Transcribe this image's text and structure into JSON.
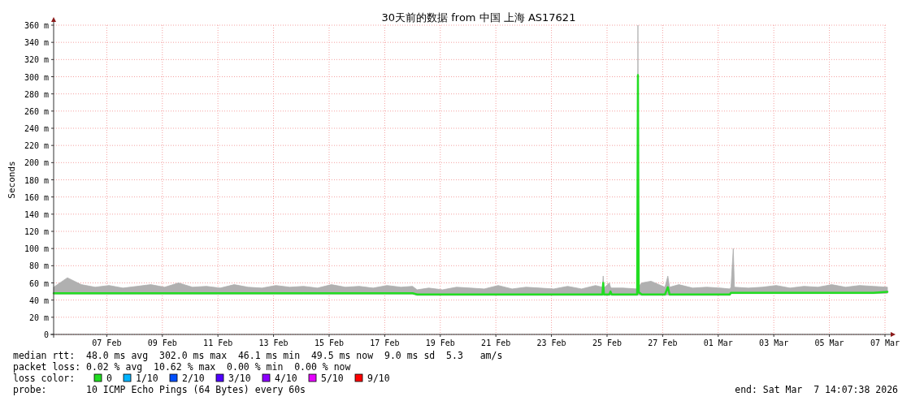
{
  "chart_data": {
    "type": "line",
    "title": "30天前的数据 from 中国 上海 AS17621",
    "ylabel": "Seconds",
    "legend_title": "loss color:",
    "legend": "bottom",
    "grid": true,
    "marker": "none",
    "line_style": "solid",
    "xlim": [
      "2026-02-05T14:07",
      "2026-03-07T14:07"
    ],
    "xticks": [
      {
        "value": "2026-02-07T12:00",
        "label": "07 Feb"
      },
      {
        "value": "2026-02-09T12:00",
        "label": "09 Feb"
      },
      {
        "value": "2026-02-11T12:00",
        "label": "11 Feb"
      },
      {
        "value": "2026-02-13T12:00",
        "label": "13 Feb"
      },
      {
        "value": "2026-02-15T12:00",
        "label": "15 Feb"
      },
      {
        "value": "2026-02-17T12:00",
        "label": "17 Feb"
      },
      {
        "value": "2026-02-19T12:00",
        "label": "19 Feb"
      },
      {
        "value": "2026-02-21T12:00",
        "label": "21 Feb"
      },
      {
        "value": "2026-02-23T12:00",
        "label": "23 Feb"
      },
      {
        "value": "2026-02-25T12:00",
        "label": "25 Feb"
      },
      {
        "value": "2026-02-27T12:00",
        "label": "27 Feb"
      },
      {
        "value": "2026-03-01T12:00",
        "label": "01 Mar"
      },
      {
        "value": "2026-03-03T12:00",
        "label": "03 Mar"
      },
      {
        "value": "2026-03-05T12:00",
        "label": "05 Mar"
      },
      {
        "value": "2026-03-07T12:00",
        "label": "07 Mar"
      }
    ],
    "ylim": [
      0,
      360
    ],
    "yticks": [
      0,
      {
        "value": 20,
        "label": "20 m"
      },
      {
        "value": 40,
        "label": "40 m"
      },
      {
        "value": 60,
        "label": "60 m"
      },
      {
        "value": 80,
        "label": "80 m"
      },
      {
        "value": 100,
        "label": "100 m"
      },
      {
        "value": 120,
        "label": "120 m"
      },
      {
        "value": 140,
        "label": "140 m"
      },
      {
        "value": 160,
        "label": "160 m"
      },
      {
        "value": 180,
        "label": "180 m"
      },
      {
        "value": 200,
        "label": "200 m"
      },
      {
        "value": 220,
        "label": "220 m"
      },
      {
        "value": 240,
        "label": "240 m"
      },
      {
        "value": 260,
        "label": "260 m"
      },
      {
        "value": 280,
        "label": "280 m"
      },
      {
        "value": 300,
        "label": "300 m"
      },
      {
        "value": 320,
        "label": "320 m"
      },
      {
        "value": 340,
        "label": "340 m"
      },
      {
        "value": 360,
        "label": "360 m"
      }
    ],
    "series": [
      {
        "name": "0",
        "color": "#22dd22",
        "x": [
          "2026-02-05T14:07",
          "2026-02-06T02:00",
          "2026-02-06T14:00",
          "2026-02-07T02:00",
          "2026-02-07T14:00",
          "2026-02-08T02:00",
          "2026-02-08T14:00",
          "2026-02-09T02:00",
          "2026-02-09T14:00",
          "2026-02-10T02:00",
          "2026-02-10T14:00",
          "2026-02-11T02:00",
          "2026-02-11T14:00",
          "2026-02-12T02:00",
          "2026-02-12T14:00",
          "2026-02-13T02:00",
          "2026-02-13T14:00",
          "2026-02-14T02:00",
          "2026-02-14T14:00",
          "2026-02-15T02:00",
          "2026-02-15T14:00",
          "2026-02-16T02:00",
          "2026-02-16T14:00",
          "2026-02-17T02:00",
          "2026-02-17T14:00",
          "2026-02-18T02:00",
          "2026-02-18T12:00",
          "2026-02-18T16:00",
          "2026-02-19T02:00",
          "2026-02-19T14:00",
          "2026-02-20T02:00",
          "2026-02-20T14:00",
          "2026-02-21T02:00",
          "2026-02-21T14:00",
          "2026-02-22T02:00",
          "2026-02-22T14:00",
          "2026-02-23T02:00",
          "2026-02-23T14:00",
          "2026-02-24T02:00",
          "2026-02-24T14:00",
          "2026-02-25T02:00",
          "2026-02-25T08:00",
          "2026-02-25T08:40",
          "2026-02-25T09:20",
          "2026-02-25T14:00",
          "2026-02-25T15:00",
          "2026-02-25T16:00",
          "2026-02-26T02:00",
          "2026-02-26T14:00",
          "2026-02-26T14:40",
          "2026-02-26T15:20",
          "2026-02-26T18:00",
          "2026-02-27T02:00",
          "2026-02-27T14:00",
          "2026-02-27T16:30",
          "2026-02-27T18:00",
          "2026-02-28T02:00",
          "2026-02-28T14:00",
          "2026-03-01T02:00",
          "2026-03-01T14:00",
          "2026-03-01T22:00",
          "2026-03-01T23:00",
          "2026-03-02T01:00",
          "2026-03-02T02:00",
          "2026-03-02T14:00",
          "2026-03-03T02:00",
          "2026-03-03T14:00",
          "2026-03-04T02:00",
          "2026-03-04T14:00",
          "2026-03-05T02:00",
          "2026-03-05T14:00",
          "2026-03-06T02:00",
          "2026-03-06T14:00",
          "2026-03-07T02:00",
          "2026-03-07T14:07"
        ],
        "values": [
          48,
          48,
          48,
          48,
          48,
          48,
          48,
          48,
          48,
          48,
          48,
          48,
          48,
          48,
          48,
          48,
          48,
          48,
          48,
          48,
          48,
          48,
          48,
          48,
          48,
          48,
          48,
          46.5,
          46.5,
          46.5,
          46.5,
          46.5,
          46.5,
          46.5,
          46.5,
          46.5,
          46.5,
          46.5,
          46.5,
          46.5,
          46.5,
          46.5,
          60,
          46.5,
          46.5,
          50,
          46.5,
          46.5,
          46.5,
          302,
          49,
          46.5,
          46.5,
          46.5,
          55,
          46.5,
          46.5,
          46.5,
          46.5,
          46.5,
          46.5,
          48.5,
          48.5,
          48.5,
          48.5,
          48.5,
          48.5,
          48.5,
          48.5,
          48.5,
          48.5,
          48.5,
          48.5,
          48.5,
          49.5
        ],
        "lower": [
          47,
          47,
          47,
          47,
          47,
          47,
          47,
          47,
          47,
          47,
          47,
          47,
          47,
          47,
          47,
          47,
          47,
          47,
          47,
          47,
          47,
          47,
          47,
          47,
          47,
          47,
          47,
          45.5,
          45.5,
          45.5,
          45.5,
          45.5,
          45.5,
          45.5,
          45.5,
          45.5,
          45.5,
          45.5,
          45.5,
          45.5,
          45.5,
          45.5,
          46,
          45.5,
          45.5,
          46,
          45.5,
          45.5,
          45.5,
          46,
          46,
          45.5,
          45.5,
          45.5,
          46,
          45.5,
          45.5,
          45.5,
          45.5,
          45.5,
          45.5,
          47.5,
          47.5,
          47.5,
          47.5,
          47.5,
          47.5,
          47.5,
          47.5,
          47.5,
          47.5,
          47.5,
          47.5,
          47.5,
          48
        ],
        "upper": [
          55,
          66,
          58,
          55,
          57,
          54,
          56,
          58,
          55,
          60,
          55,
          56,
          54,
          58,
          55,
          54,
          57,
          55,
          56,
          54,
          58,
          55,
          56,
          54,
          57,
          55,
          56,
          52,
          54,
          52,
          55,
          54,
          53,
          57,
          53,
          55,
          54,
          53,
          56,
          53,
          57,
          55,
          68,
          54,
          60,
          55,
          54,
          54,
          53,
          360,
          56,
          60,
          62,
          55,
          68,
          55,
          58,
          54,
          55,
          54,
          53,
          55,
          100,
          55,
          54,
          55,
          57,
          54,
          56,
          55,
          58,
          55,
          57,
          56,
          55
        ]
      },
      {
        "name": "1/10",
        "color": "#00b4ff"
      },
      {
        "name": "2/10",
        "color": "#0050ff"
      },
      {
        "name": "3/10",
        "color": "#5000ff"
      },
      {
        "name": "4/10",
        "color": "#8c00ff"
      },
      {
        "name": "5/10",
        "color": "#e600ff"
      },
      {
        "name": "9/10",
        "color": "#ff0000"
      }
    ],
    "annotations": [
      "median rtt:  48.0 ms avg  302.0 ms max  46.1 ms min  49.5 ms now  9.0 ms sd  5.3   am/s",
      "packet loss: 0.02 % avg  10.62 % max  0.00 % min  0.00 % now",
      "probe:       10 ICMP Echo Pings (64 Bytes) every 60s",
      "end: Sat Mar  7 14:07:38 2026"
    ]
  }
}
